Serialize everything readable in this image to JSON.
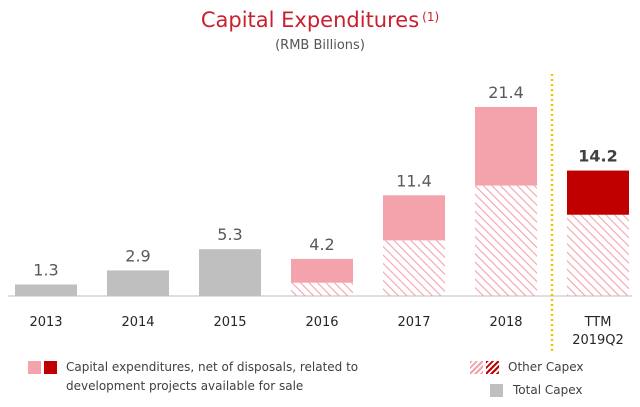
{
  "chart_data": {
    "type": "bar",
    "title": "Capital Expenditures",
    "title_note": "(1)",
    "subtitle": "(RMB Billions)",
    "categories": [
      "2013",
      "2014",
      "2015",
      "2016",
      "2017",
      "2018",
      "TTM 2019Q2"
    ],
    "totals": [
      1.3,
      2.9,
      5.3,
      4.2,
      11.4,
      21.4,
      14.2
    ],
    "total_labels": [
      "1.3",
      "2.9",
      "5.3",
      "4.2",
      "11.4",
      "21.4",
      "14.2"
    ],
    "series": [
      {
        "name": "Total Capex",
        "values": [
          1.3,
          2.9,
          5.3,
          null,
          null,
          null,
          null
        ]
      },
      {
        "name": "Other Capex",
        "values": [
          null,
          null,
          null,
          1.5,
          6.3,
          12.5,
          9.2
        ]
      },
      {
        "name": "Capital expenditures, net of disposals, related to development projects available for sale",
        "values": [
          null,
          null,
          null,
          2.7,
          5.1,
          8.9,
          5.0
        ]
      }
    ],
    "ylim": [
      0,
      24
    ],
    "highlight_category": "TTM 2019Q2",
    "legend": {
      "placement": "bottom",
      "dev_label": "Capital expenditures, net of disposals, related to development projects available for sale",
      "other_label": "Other Capex",
      "total_label": "Total Capex"
    },
    "colors": {
      "total": "#bfbfbf",
      "dev_light": "#f4a3ad",
      "dev_dark": "#c00000",
      "other_hatch": "#f4a3ad",
      "title": "#c8202f",
      "divider": "#f2c400",
      "value_text": "#595959",
      "axis": "#bfbfbf"
    }
  }
}
